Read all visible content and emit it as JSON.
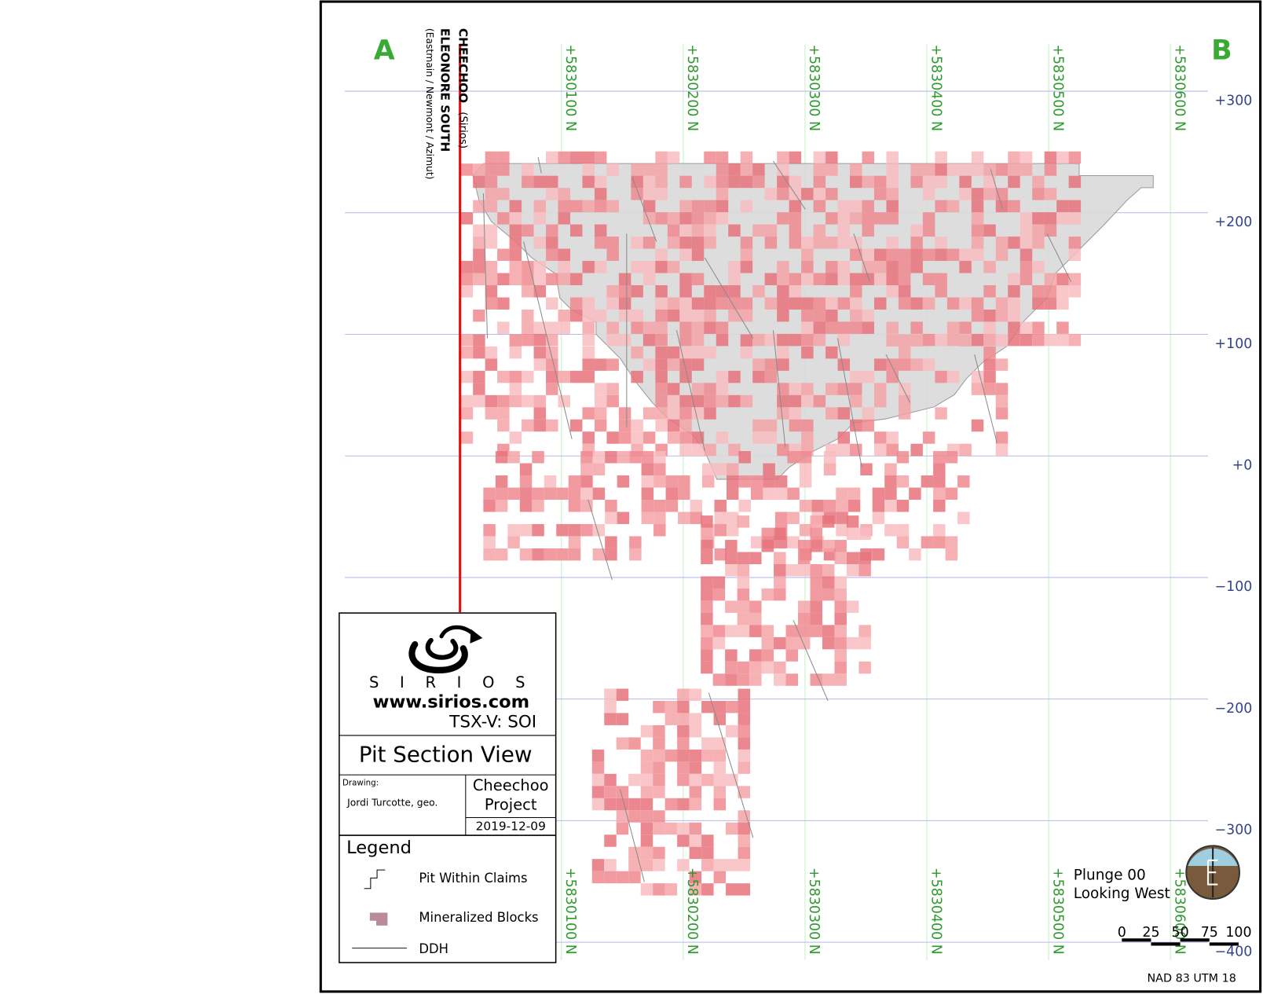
{
  "section": {
    "end_labels": [
      "A",
      "B"
    ],
    "claims": [
      {
        "name": "CHEECHOO",
        "owner": "(Sirios)"
      },
      {
        "name": "ELEONORE SOUTH",
        "owner": "(Eastmain / Newmont / Azimut)"
      }
    ],
    "northing_ticks": [
      {
        "value": 5830100,
        "label": "+5830100 N"
      },
      {
        "value": 5830200,
        "label": "+5830200 N"
      },
      {
        "value": 5830300,
        "label": "+5830300 N"
      },
      {
        "value": 5830400,
        "label": "+5830400 N"
      },
      {
        "value": 5830500,
        "label": "+5830500 N"
      },
      {
        "value": 5830600,
        "label": "+5830600 N"
      }
    ],
    "elevation_ticks": [
      {
        "value": 300,
        "label": "+300"
      },
      {
        "value": 200,
        "label": "+200"
      },
      {
        "value": 100,
        "label": "+100"
      },
      {
        "value": 0,
        "label": "+0"
      },
      {
        "value": -100,
        "label": "−100"
      },
      {
        "value": -200,
        "label": "−200"
      },
      {
        "value": -300,
        "label": "−300"
      },
      {
        "value": -400,
        "label": "−400"
      }
    ]
  },
  "title_block": {
    "company": "S I R I O S",
    "website": "www.sirios.com",
    "ticker": "TSX-V: SOI",
    "view": "Pit Section View",
    "drawing_label": "Drawing:",
    "author": "Jordi Turcotte, geo.",
    "project": [
      "Cheechoo",
      "Project"
    ],
    "date": "2019-12-09"
  },
  "legend": {
    "title": "Legend",
    "items": [
      "Pit Within Claims",
      "Mineralized Blocks",
      "DDH"
    ]
  },
  "orientation": {
    "plunge": "Plunge 00",
    "view": "Looking West"
  },
  "scale": {
    "labels": [
      0,
      25,
      50,
      75,
      100
    ]
  },
  "datum": "NAD 83 UTM 18"
}
